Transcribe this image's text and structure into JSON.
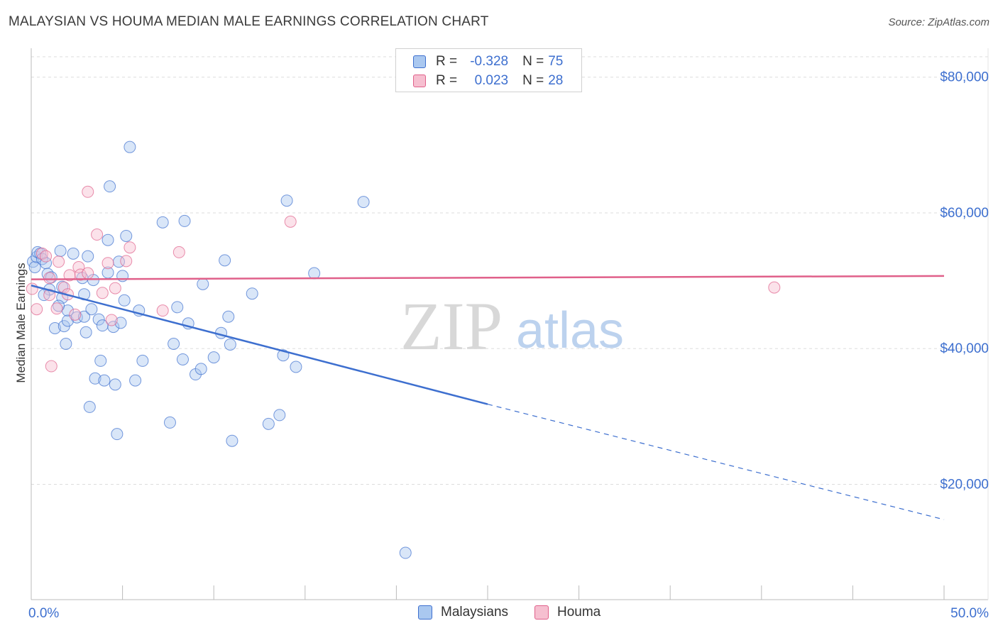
{
  "colors": {
    "blue": "#3d6fcf",
    "blue_fill": "#aac8f0",
    "pink": "#e0608a",
    "pink_fill": "#f6bfd0",
    "grid": "#dddddd",
    "axis": "#bbbbbb",
    "watermark": "#d8d8d8",
    "watermark_atlas": "#bcd2ee"
  },
  "watermark": {
    "zip": "ZIP",
    "atlas": "atlas"
  },
  "chart_data": {
    "type": "scatter",
    "title": "MALAYSIAN VS HOUMA MEDIAN MALE EARNINGS CORRELATION CHART",
    "source": "Source: ZipAtlas.com",
    "xlabel": "",
    "ylabel": "Median Male Earnings",
    "xlim": [
      0,
      50
    ],
    "ylim": [
      3000,
      83000
    ],
    "x_tick_labels": [
      {
        "value": 0,
        "label": "0.0%"
      },
      {
        "value": 50,
        "label": "50.0%"
      }
    ],
    "x_tick_marks": [
      0,
      5,
      10,
      15,
      20,
      25,
      30,
      35,
      40,
      45,
      50
    ],
    "y_ticks": [
      {
        "value": 20000,
        "label": "$20,000"
      },
      {
        "value": 40000,
        "label": "$40,000"
      },
      {
        "value": 60000,
        "label": "$60,000"
      },
      {
        "value": 80000,
        "label": "$80,000"
      }
    ],
    "grid": true,
    "legend_position": "top-center",
    "legend_stats": [
      {
        "r_label": "R =",
        "r_value": "-0.328",
        "n_label": "N =",
        "n_value": "75"
      },
      {
        "r_label": "R =",
        "r_value": "0.023",
        "n_label": "N =",
        "n_value": "28"
      }
    ],
    "series": [
      {
        "name": "Malaysians",
        "color": "#3d6fcf",
        "fill": "#aac8f0",
        "trend": {
          "x0": 0,
          "y0": 49300,
          "x1": 25,
          "y1": 31800,
          "dashed_to_x": 50,
          "dashed_to_y": 14800
        },
        "points": [
          [
            0.1,
            52800
          ],
          [
            0.2,
            52000
          ],
          [
            0.3,
            53500
          ],
          [
            0.35,
            54200
          ],
          [
            0.5,
            54000
          ],
          [
            0.6,
            53200
          ],
          [
            0.8,
            52600
          ],
          [
            0.9,
            51000
          ],
          [
            1.1,
            50500
          ],
          [
            1.0,
            48700
          ],
          [
            1.3,
            43000
          ],
          [
            1.6,
            54400
          ],
          [
            1.7,
            49100
          ],
          [
            1.7,
            47500
          ],
          [
            1.8,
            43300
          ],
          [
            1.9,
            40700
          ],
          [
            2.0,
            45600
          ],
          [
            2.0,
            44100
          ],
          [
            2.3,
            54000
          ],
          [
            2.5,
            44600
          ],
          [
            2.8,
            50400
          ],
          [
            2.9,
            48000
          ],
          [
            2.9,
            44700
          ],
          [
            3.0,
            42400
          ],
          [
            3.1,
            53600
          ],
          [
            3.2,
            31400
          ],
          [
            3.3,
            45800
          ],
          [
            3.4,
            50100
          ],
          [
            3.5,
            35600
          ],
          [
            3.7,
            44300
          ],
          [
            3.8,
            38200
          ],
          [
            3.9,
            43400
          ],
          [
            4.0,
            35300
          ],
          [
            4.2,
            56000
          ],
          [
            4.2,
            51200
          ],
          [
            4.3,
            63900
          ],
          [
            4.5,
            43200
          ],
          [
            4.6,
            34700
          ],
          [
            4.7,
            27400
          ],
          [
            4.8,
            52800
          ],
          [
            4.9,
            43800
          ],
          [
            5.0,
            50700
          ],
          [
            5.1,
            47100
          ],
          [
            5.2,
            56600
          ],
          [
            5.4,
            69700
          ],
          [
            5.7,
            35300
          ],
          [
            5.9,
            45600
          ],
          [
            6.1,
            38200
          ],
          [
            7.2,
            58600
          ],
          [
            7.6,
            29100
          ],
          [
            7.8,
            40700
          ],
          [
            8.0,
            46100
          ],
          [
            8.3,
            38400
          ],
          [
            8.4,
            58800
          ],
          [
            8.6,
            43700
          ],
          [
            9.0,
            36200
          ],
          [
            9.3,
            37000
          ],
          [
            9.4,
            49500
          ],
          [
            10.0,
            38700
          ],
          [
            10.4,
            42300
          ],
          [
            10.6,
            53000
          ],
          [
            10.8,
            44700
          ],
          [
            10.9,
            40600
          ],
          [
            11.0,
            26400
          ],
          [
            12.1,
            48100
          ],
          [
            13.0,
            28900
          ],
          [
            13.6,
            30200
          ],
          [
            13.8,
            39000
          ],
          [
            14.0,
            61800
          ],
          [
            14.5,
            37300
          ],
          [
            15.5,
            51100
          ],
          [
            18.2,
            61600
          ],
          [
            20.5,
            9900
          ],
          [
            0.7,
            47900
          ],
          [
            1.5,
            46300
          ]
        ]
      },
      {
        "name": "Houma",
        "color": "#e0608a",
        "fill": "#f6bfd0",
        "trend": {
          "x0": 0,
          "y0": 50200,
          "x1": 50,
          "y1": 50700
        },
        "points": [
          [
            0.05,
            48800
          ],
          [
            0.3,
            45800
          ],
          [
            0.6,
            54000
          ],
          [
            0.8,
            53600
          ],
          [
            1.0,
            50400
          ],
          [
            1.0,
            47900
          ],
          [
            1.1,
            37400
          ],
          [
            1.4,
            45900
          ],
          [
            1.5,
            52800
          ],
          [
            1.8,
            49000
          ],
          [
            2.0,
            48000
          ],
          [
            2.1,
            50800
          ],
          [
            2.4,
            45000
          ],
          [
            2.6,
            52000
          ],
          [
            2.7,
            50900
          ],
          [
            3.1,
            51100
          ],
          [
            3.1,
            63100
          ],
          [
            3.6,
            56800
          ],
          [
            3.9,
            48200
          ],
          [
            4.2,
            52600
          ],
          [
            4.4,
            44200
          ],
          [
            4.6,
            48900
          ],
          [
            5.2,
            52900
          ],
          [
            5.4,
            54900
          ],
          [
            7.2,
            45600
          ],
          [
            8.1,
            54200
          ],
          [
            14.2,
            58700
          ],
          [
            40.7,
            49000
          ]
        ]
      }
    ]
  }
}
